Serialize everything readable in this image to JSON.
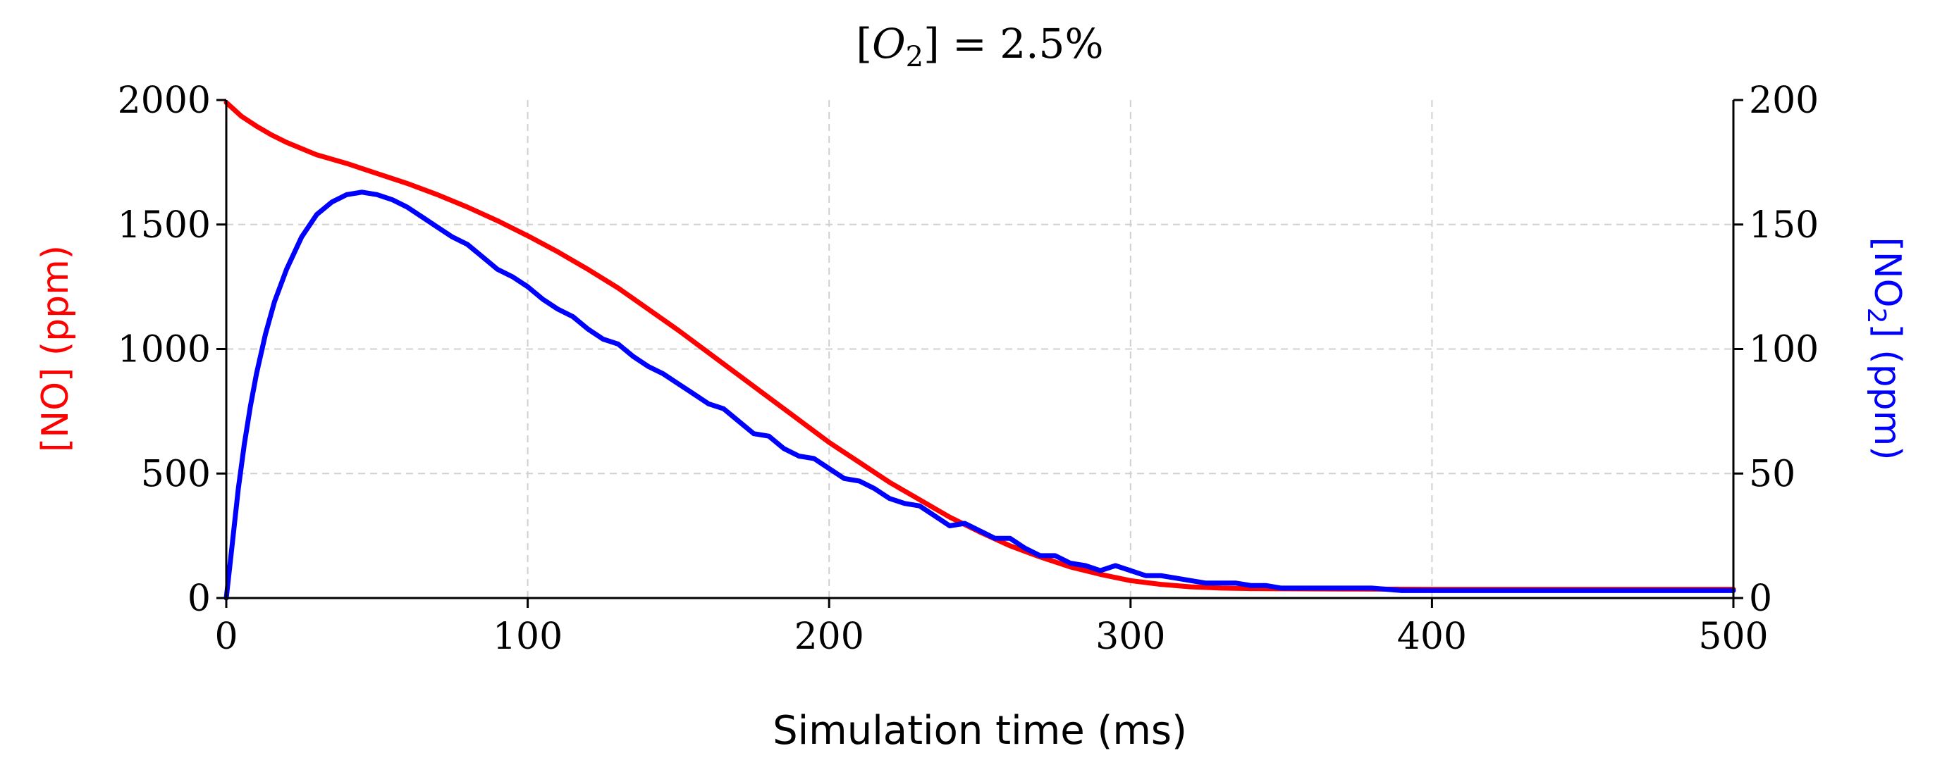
{
  "chart_data": {
    "type": "line",
    "title_parts": {
      "bracket_open": "[",
      "symbol": "O",
      "subscript": "2",
      "bracket_close": "]",
      "equals": " = ",
      "value": "2.5%"
    },
    "xlabel": "Simulation time (ms)",
    "ylabel_left": "[NO] (ppm)",
    "ylabel_right_parts": {
      "prefix": "[NO",
      "subscript": "2",
      "suffix": "] (ppm)"
    },
    "xlim": [
      0,
      500
    ],
    "ylim_left": [
      0,
      2000
    ],
    "ylim_right": [
      0,
      200
    ],
    "xticks": [
      "0",
      "100",
      "200",
      "300",
      "400",
      "500"
    ],
    "yticks_left": [
      "0",
      "500",
      "1000",
      "1500",
      "2000"
    ],
    "yticks_right": [
      "0",
      "50",
      "100",
      "150",
      "200"
    ],
    "grid": true,
    "colors": {
      "no": "#ff0000",
      "no2": "#0000ff",
      "axes": "#000000",
      "grid": "#d0d0d0"
    },
    "series": [
      {
        "name": "[NO]",
        "axis": "left",
        "color": "#ff0000",
        "x": [
          0,
          5,
          10,
          15,
          20,
          30,
          40,
          50,
          60,
          70,
          80,
          90,
          100,
          110,
          120,
          130,
          140,
          150,
          160,
          170,
          180,
          190,
          200,
          210,
          220,
          230,
          240,
          250,
          260,
          270,
          280,
          290,
          300,
          310,
          320,
          330,
          340,
          350,
          375,
          400,
          450,
          500
        ],
        "values": [
          1990,
          1935,
          1895,
          1860,
          1830,
          1780,
          1745,
          1705,
          1665,
          1620,
          1570,
          1515,
          1455,
          1390,
          1320,
          1245,
          1160,
          1075,
          985,
          895,
          805,
          715,
          625,
          545,
          465,
          395,
          325,
          265,
          210,
          165,
          125,
          95,
          70,
          55,
          45,
          40,
          38,
          37,
          36,
          35,
          35,
          35
        ]
      },
      {
        "name": "[NO2]",
        "axis": "right",
        "color": "#0000ff",
        "x": [
          0,
          2,
          4,
          6,
          8,
          10,
          13,
          16,
          20,
          25,
          30,
          35,
          40,
          45,
          50,
          55,
          60,
          65,
          70,
          75,
          80,
          85,
          90,
          95,
          100,
          105,
          110,
          115,
          120,
          125,
          130,
          135,
          140,
          145,
          150,
          155,
          160,
          165,
          170,
          175,
          180,
          185,
          190,
          195,
          200,
          205,
          210,
          215,
          220,
          225,
          230,
          235,
          240,
          245,
          250,
          255,
          260,
          265,
          270,
          275,
          280,
          285,
          290,
          295,
          300,
          305,
          310,
          315,
          320,
          325,
          330,
          335,
          340,
          345,
          350,
          360,
          370,
          380,
          390,
          400,
          410,
          420,
          430,
          440,
          450,
          460,
          470,
          480,
          490,
          500
        ],
        "values": [
          0,
          22,
          44,
          62,
          77,
          90,
          106,
          119,
          132,
          145,
          154,
          159,
          162,
          163,
          162,
          160,
          157,
          153,
          149,
          145,
          142,
          137,
          132,
          129,
          125,
          120,
          116,
          113,
          108,
          104,
          102,
          97,
          93,
          90,
          86,
          82,
          78,
          76,
          71,
          66,
          65,
          60,
          57,
          56,
          52,
          48,
          47,
          44,
          40,
          38,
          37,
          33,
          29,
          30,
          27,
          24,
          24,
          20,
          17,
          17,
          14,
          13,
          11,
          13,
          11,
          9,
          9,
          8,
          7,
          6,
          6,
          6,
          5,
          5,
          4,
          4,
          4,
          4,
          3,
          3,
          3,
          3,
          3,
          3,
          3,
          3,
          3,
          3,
          3,
          3
        ]
      }
    ]
  }
}
